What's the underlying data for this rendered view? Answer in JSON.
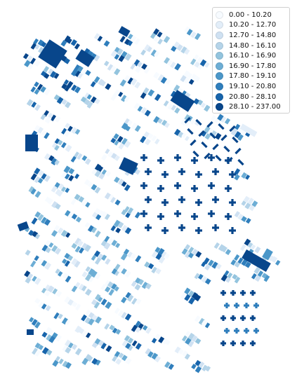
{
  "chart_data": {
    "type": "choropleth",
    "title": "",
    "legend": {
      "position": "top-right",
      "entries": [
        {
          "label": "0.00 - 10.20",
          "color": "#f7fbff"
        },
        {
          "label": "10.20 - 12.70",
          "color": "#e3eef9"
        },
        {
          "label": "12.70 - 14.80",
          "color": "#cfe1f2"
        },
        {
          "label": "14.80 - 16.10",
          "color": "#b5d4e9"
        },
        {
          "label": "16.10 - 16.90",
          "color": "#93c4de"
        },
        {
          "label": "16.90 - 17.80",
          "color": "#6daed5"
        },
        {
          "label": "17.80 - 19.10",
          "color": "#4b97c9"
        },
        {
          "label": "19.10 - 20.80",
          "color": "#2f7ebc"
        },
        {
          "label": "20.80 - 28.10",
          "color": "#1764ab"
        },
        {
          "label": "28.10 - 237.00",
          "color": "#08468b"
        }
      ]
    }
  }
}
